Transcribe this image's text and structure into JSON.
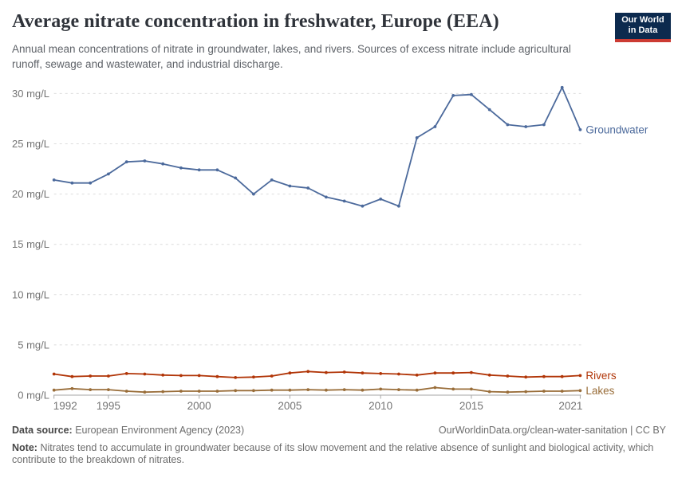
{
  "header": {
    "title": "Average nitrate concentration in freshwater, Europe (EEA)",
    "subtitle": "Annual mean concentrations of nitrate in groundwater, lakes, and rivers. Sources of excess nitrate include agricultural runoff, sewage and wastewater, and industrial discharge.",
    "logo": {
      "line1": "Our World",
      "line2": "in Data",
      "bg_color": "#0c2a4e",
      "bar_color": "#cc3b33"
    }
  },
  "chart_data": {
    "type": "line",
    "title": "Average nitrate concentration in freshwater, Europe (EEA)",
    "xlabel": "",
    "ylabel": "mg/L",
    "x": [
      1992,
      1993,
      1994,
      1995,
      1996,
      1997,
      1998,
      1999,
      2000,
      2001,
      2002,
      2003,
      2004,
      2005,
      2006,
      2007,
      2008,
      2009,
      2010,
      2011,
      2012,
      2013,
      2014,
      2015,
      2016,
      2017,
      2018,
      2019,
      2020,
      2021
    ],
    "x_ticks": [
      1992,
      1995,
      2000,
      2005,
      2010,
      2015,
      2021
    ],
    "y_ticks": [
      0,
      5,
      10,
      15,
      20,
      25,
      30
    ],
    "y_tick_suffix": " mg/L",
    "ylim": [
      0,
      31
    ],
    "grid": "horizontal-dashed",
    "grid_color": "#dcdcdc",
    "axis_color": "#a6a6a6",
    "tick_label_color": "#747474",
    "legend": "end-of-line labels",
    "series": [
      {
        "name": "Groundwater",
        "color": "#4C6A9C",
        "values": [
          21.4,
          21.1,
          21.1,
          22.0,
          23.2,
          23.3,
          23.0,
          22.6,
          22.4,
          22.4,
          21.6,
          20.0,
          21.4,
          20.8,
          20.6,
          19.7,
          19.3,
          18.8,
          19.5,
          18.8,
          25.6,
          26.7,
          29.8,
          29.9,
          28.4,
          26.9,
          26.7,
          26.9,
          30.6,
          26.4
        ]
      },
      {
        "name": "Rivers",
        "color": "#B13507",
        "values": [
          2.1,
          1.85,
          1.9,
          1.9,
          2.15,
          2.1,
          2.0,
          1.95,
          1.95,
          1.85,
          1.75,
          1.8,
          1.9,
          2.2,
          2.35,
          2.25,
          2.3,
          2.2,
          2.15,
          2.1,
          2.0,
          2.2,
          2.2,
          2.25,
          2.0,
          1.9,
          1.8,
          1.85,
          1.85,
          1.95
        ]
      },
      {
        "name": "Lakes",
        "color": "#996D39",
        "values": [
          0.5,
          0.65,
          0.55,
          0.55,
          0.4,
          0.3,
          0.35,
          0.4,
          0.4,
          0.4,
          0.45,
          0.45,
          0.5,
          0.5,
          0.55,
          0.5,
          0.55,
          0.5,
          0.6,
          0.55,
          0.5,
          0.75,
          0.6,
          0.6,
          0.35,
          0.3,
          0.35,
          0.4,
          0.4,
          0.45
        ]
      }
    ]
  },
  "footer": {
    "source_label": "Data source:",
    "source_text": "European Environment Agency (2023)",
    "attribution": "OurWorldinData.org/clean-water-sanitation | CC BY",
    "note_label": "Note:",
    "note_text": "Nitrates tend to accumulate in groundwater because of its slow movement and the relative absence of sunlight and biological activity, which contribute to the breakdown of nitrates."
  }
}
